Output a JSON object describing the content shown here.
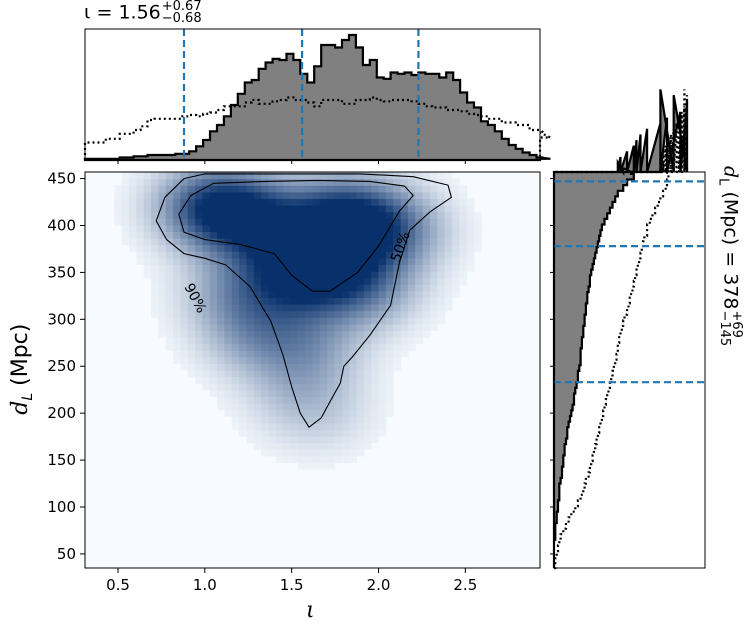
{
  "chart_data": [
    {
      "panel": "main",
      "type": "heatmap",
      "xlabel": "ι",
      "ylabel": "d_L (Mpc)",
      "xlim": [
        0.31,
        2.93
      ],
      "ylim": [
        35,
        457
      ],
      "xticks": [
        "0.5",
        "1.0",
        "1.5",
        "2.0",
        "2.5"
      ],
      "xtick_values": [
        0.5,
        1.0,
        1.5,
        2.0,
        2.5
      ],
      "yticks": [
        "50",
        "100",
        "150",
        "200",
        "250",
        "300",
        "350",
        "400",
        "450"
      ],
      "ytick_values": [
        50,
        100,
        150,
        200,
        250,
        300,
        350,
        400,
        450
      ],
      "colormap": "Blues",
      "density_peaks": [
        {
          "iota": 1.05,
          "dl": 420,
          "weight": 1.0
        },
        {
          "iota": 1.3,
          "dl": 405,
          "weight": 0.8
        },
        {
          "iota": 1.8,
          "dl": 410,
          "weight": 0.9
        },
        {
          "iota": 1.65,
          "dl": 375,
          "weight": 0.85
        },
        {
          "iota": 2.05,
          "dl": 395,
          "weight": 0.7
        },
        {
          "iota": 1.55,
          "dl": 345,
          "weight": 0.75
        },
        {
          "iota": 1.9,
          "dl": 335,
          "weight": 0.6
        },
        {
          "iota": 1.2,
          "dl": 330,
          "weight": 0.45
        },
        {
          "iota": 1.3,
          "dl": 285,
          "weight": 0.4
        },
        {
          "iota": 1.6,
          "dl": 275,
          "weight": 0.35
        },
        {
          "iota": 1.55,
          "dl": 230,
          "weight": 0.25
        },
        {
          "iota": 1.65,
          "dl": 195,
          "weight": 0.15
        }
      ],
      "contours": [
        {
          "label": "50%",
          "iota": [
            1.05,
            1.35,
            1.65,
            1.95,
            2.15,
            2.2,
            2.12,
            2.0,
            1.88,
            1.72,
            1.62,
            1.5,
            1.4,
            1.2,
            1.0,
            0.88,
            0.85,
            0.92,
            1.05
          ],
          "dl": [
            445,
            447,
            448,
            447,
            442,
            432,
            415,
            378,
            350,
            330,
            330,
            347,
            370,
            380,
            385,
            393,
            412,
            432,
            445
          ]
        },
        {
          "label": "90%",
          "iota": [
            1.0,
            1.3,
            1.6,
            1.9,
            2.2,
            2.4,
            2.42,
            2.3,
            2.18,
            2.12,
            2.07,
            1.95,
            1.85,
            1.8,
            1.78,
            1.72,
            1.67,
            1.6,
            1.55,
            1.5,
            1.45,
            1.38,
            1.26,
            1.12,
            1.0,
            0.88,
            0.78,
            0.72,
            0.77,
            0.88,
            1.0
          ],
          "dl": [
            455,
            455,
            455,
            455,
            452,
            443,
            430,
            415,
            395,
            360,
            315,
            283,
            260,
            250,
            232,
            212,
            195,
            185,
            200,
            228,
            262,
            298,
            335,
            358,
            365,
            370,
            385,
            405,
            430,
            450,
            455
          ]
        }
      ],
      "annotations": [
        "50%",
        "90%"
      ]
    },
    {
      "panel": "top",
      "type": "histogram",
      "title_value": "1.56",
      "title_upper": "+0.67",
      "title_lower": "−0.68",
      "bin_edges_start": 0.31,
      "bin_width": 0.04,
      "posterior": [
        1,
        1,
        1,
        1,
        1,
        2,
        2,
        3,
        3,
        4,
        4,
        4,
        4,
        5,
        5,
        7,
        11,
        16,
        23,
        28,
        35,
        44,
        53,
        62,
        64,
        73,
        78,
        81,
        80,
        85,
        80,
        69,
        62,
        75,
        92,
        92,
        90,
        96,
        100,
        90,
        76,
        80,
        66,
        65,
        70,
        69,
        70,
        68,
        70,
        69,
        69,
        66,
        70,
        64,
        54,
        46,
        42,
        31,
        28,
        23,
        17,
        12,
        9,
        6,
        4,
        2,
        2,
        1
      ],
      "prior": [
        14,
        14,
        14,
        17,
        17,
        21,
        21,
        24,
        27,
        32,
        33,
        33,
        33,
        33,
        35,
        36,
        35,
        37,
        38,
        40,
        43,
        43,
        43,
        46,
        48,
        45,
        45,
        47,
        48,
        50,
        48,
        48,
        46,
        43,
        48,
        48,
        48,
        45,
        45,
        48,
        48,
        50,
        48,
        47,
        48,
        48,
        48,
        47,
        45,
        43,
        42,
        42,
        40,
        40,
        39,
        37,
        36,
        35,
        33,
        33,
        30,
        30,
        28,
        28,
        24,
        24,
        22,
        18
      ],
      "vlines": [
        0.88,
        1.56,
        2.23
      ],
      "xlim": [
        0.31,
        2.93
      ]
    },
    {
      "panel": "right",
      "type": "histogram",
      "title_value": "378",
      "title_upper": "+69",
      "title_lower": "−145",
      "bin_edges_start": 35,
      "bin_width": 6,
      "posterior": [
        0,
        0,
        0,
        0,
        0,
        1,
        1,
        1,
        2,
        2,
        3,
        3,
        4,
        4,
        4,
        5,
        6,
        6,
        7,
        7,
        8,
        8,
        9,
        10,
        10,
        11,
        12,
        13,
        14,
        15,
        15,
        16,
        17,
        18,
        18,
        19,
        20,
        20,
        20,
        21,
        21,
        22,
        22,
        23,
        23,
        24,
        24,
        25,
        25,
        26,
        27,
        27,
        28,
        29,
        30,
        31,
        32,
        33,
        34,
        35,
        36,
        38,
        40,
        42,
        44,
        46,
        48,
        52,
        55,
        60,
        58,
        52,
        48,
        50,
        55,
        60,
        62,
        65,
        70,
        80,
        85,
        95,
        100,
        100,
        90,
        80
      ],
      "prior": [
        1,
        1,
        2,
        3,
        4,
        5,
        7,
        9,
        11,
        13,
        16,
        18,
        20,
        22,
        23,
        24,
        26,
        27,
        28,
        29,
        30,
        31,
        32,
        33,
        34,
        35,
        36,
        37,
        38,
        39,
        40,
        41,
        42,
        43,
        44,
        45,
        46,
        47,
        48,
        48,
        49,
        50,
        51,
        52,
        53,
        55,
        56,
        57,
        58,
        59,
        60,
        61,
        62,
        63,
        64,
        65,
        66,
        67,
        68,
        70,
        70,
        72,
        74,
        76,
        78,
        80,
        82,
        84,
        85,
        86,
        85,
        84,
        82,
        80,
        82,
        84,
        86,
        88,
        90,
        92,
        94,
        96,
        98,
        100,
        100,
        98
      ],
      "hlines": [
        233,
        378,
        447
      ],
      "ylim": [
        35,
        457
      ]
    }
  ],
  "labels": {
    "top_title_symbol": "ι = ",
    "right_title_symbol_prefix": "d",
    "right_title_subscript": "L",
    "right_title_rest": " (Mpc) = ",
    "x_axis_label": "ι",
    "y_axis_label_main": "d",
    "y_axis_label_sub": "L",
    "y_axis_label_rest": " (Mpc)"
  },
  "colors": {
    "hist_fill": "#808080",
    "hist_edge": "#000000",
    "vline": "#1f77b4",
    "density_low": "#f7fbff",
    "density_high": "#08306b"
  }
}
